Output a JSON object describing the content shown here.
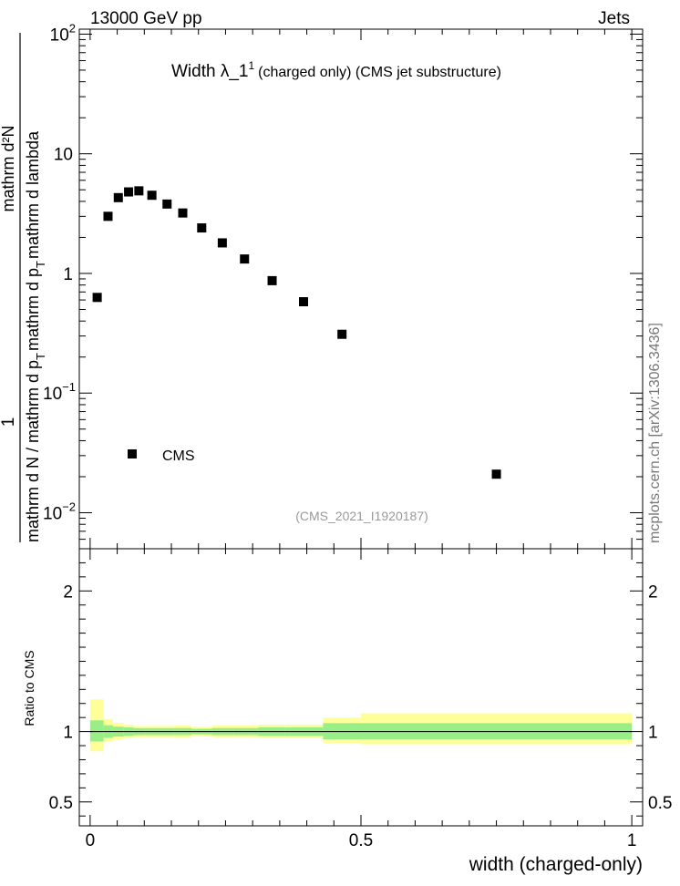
{
  "header": {
    "energy_label": "13000 GeV pp",
    "process_label": "Jets",
    "source": "mcplots.cern.ch [arXiv:1306.3436]"
  },
  "chart_data": [
    {
      "type": "scatter",
      "panel": "main",
      "title_main": "Width λ_1",
      "title_sup": "1",
      "title_sub": "(charged only) (CMS jet substructure)",
      "analysis_id": "(CMS_2021_I1920187)",
      "ylabel_parts": {
        "numerator": "mathrm d²N",
        "denominator_left": "mathrm d N / mathrm d p",
        "denominator_mid": "mathrm d p",
        "denominator_right": "mathrm d lambda",
        "sub_t": "T",
        "one": "1"
      },
      "yscale": "log",
      "ylim": [
        0.005,
        110
      ],
      "xlim": [
        -0.02,
        1.02
      ],
      "y_ticks": [
        {
          "base": "10",
          "exp": "2",
          "value": 100
        },
        {
          "base": "10",
          "exp": "",
          "value": 10
        },
        {
          "base": "1",
          "exp": "",
          "value": 1
        },
        {
          "base": "10",
          "exp": "−1",
          "value": 0.1
        },
        {
          "base": "10",
          "exp": "−2",
          "value": 0.01
        }
      ],
      "legend": {
        "label": "CMS",
        "position": "lower-left"
      },
      "series": [
        {
          "name": "CMS",
          "marker": "square",
          "color": "#000000",
          "x": [
            0.013,
            0.033,
            0.052,
            0.071,
            0.09,
            0.114,
            0.142,
            0.171,
            0.206,
            0.244,
            0.285,
            0.336,
            0.394,
            0.465,
            0.75
          ],
          "y": [
            0.63,
            3.0,
            4.3,
            4.8,
            4.9,
            4.5,
            3.8,
            3.2,
            2.4,
            1.8,
            1.32,
            0.87,
            0.58,
            0.31,
            0.021
          ]
        }
      ]
    },
    {
      "type": "area",
      "panel": "ratio",
      "ylabel": "Ratio to CMS",
      "xlabel": "width (charged-only)",
      "ylim": [
        0.33,
        2.3
      ],
      "xlim": [
        -0.02,
        1.02
      ],
      "y_ticks": [
        0.5,
        1,
        2
      ],
      "x_ticks": [
        "0",
        "0.5",
        "1"
      ],
      "x_tick_values": [
        0,
        0.5,
        1
      ],
      "bands": {
        "outer_color": "#ffff99",
        "inner_color": "#99ee88",
        "bins": [
          {
            "x0": 0.0,
            "x1": 0.025,
            "in_lo": 0.93,
            "in_hi": 1.08,
            "out_lo": 0.86,
            "out_hi": 1.23
          },
          {
            "x0": 0.025,
            "x1": 0.042,
            "in_lo": 0.955,
            "in_hi": 1.045,
            "out_lo": 0.93,
            "out_hi": 1.09
          },
          {
            "x0": 0.042,
            "x1": 0.062,
            "in_lo": 0.965,
            "in_hi": 1.035,
            "out_lo": 0.945,
            "out_hi": 1.06
          },
          {
            "x0": 0.062,
            "x1": 0.08,
            "in_lo": 0.97,
            "in_hi": 1.03,
            "out_lo": 0.955,
            "out_hi": 1.05
          },
          {
            "x0": 0.08,
            "x1": 0.1,
            "in_lo": 0.975,
            "in_hi": 1.025,
            "out_lo": 0.96,
            "out_hi": 1.04
          },
          {
            "x0": 0.1,
            "x1": 0.128,
            "in_lo": 0.975,
            "in_hi": 1.025,
            "out_lo": 0.96,
            "out_hi": 1.04
          },
          {
            "x0": 0.128,
            "x1": 0.156,
            "in_lo": 0.975,
            "in_hi": 1.025,
            "out_lo": 0.96,
            "out_hi": 1.04
          },
          {
            "x0": 0.156,
            "x1": 0.187,
            "in_lo": 0.975,
            "in_hi": 1.025,
            "out_lo": 0.955,
            "out_hi": 1.045
          },
          {
            "x0": 0.187,
            "x1": 0.225,
            "in_lo": 0.98,
            "in_hi": 1.02,
            "out_lo": 0.965,
            "out_hi": 1.035
          },
          {
            "x0": 0.225,
            "x1": 0.265,
            "in_lo": 0.975,
            "in_hi": 1.025,
            "out_lo": 0.96,
            "out_hi": 1.045
          },
          {
            "x0": 0.265,
            "x1": 0.31,
            "in_lo": 0.975,
            "in_hi": 1.025,
            "out_lo": 0.96,
            "out_hi": 1.045
          },
          {
            "x0": 0.31,
            "x1": 0.36,
            "in_lo": 0.97,
            "in_hi": 1.03,
            "out_lo": 0.955,
            "out_hi": 1.05
          },
          {
            "x0": 0.36,
            "x1": 0.43,
            "in_lo": 0.97,
            "in_hi": 1.03,
            "out_lo": 0.955,
            "out_hi": 1.05
          },
          {
            "x0": 0.43,
            "x1": 0.5,
            "in_lo": 0.945,
            "in_hi": 1.06,
            "out_lo": 0.92,
            "out_hi": 1.1
          },
          {
            "x0": 0.5,
            "x1": 1.0,
            "in_lo": 0.945,
            "in_hi": 1.06,
            "out_lo": 0.91,
            "out_hi": 1.13
          }
        ]
      }
    }
  ]
}
